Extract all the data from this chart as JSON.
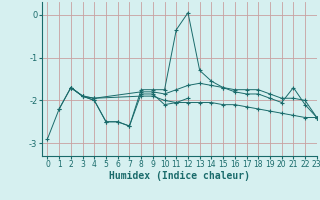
{
  "xlabel": "Humidex (Indice chaleur)",
  "bg_color": "#d6f0f0",
  "grid_color": "#c8a0a0",
  "line_color": "#1a6b6b",
  "xlim": [
    -0.5,
    23
  ],
  "ylim": [
    -3.3,
    0.3
  ],
  "yticks": [
    0,
    -1,
    -2,
    -3
  ],
  "xticks": [
    0,
    1,
    2,
    3,
    4,
    5,
    6,
    7,
    8,
    9,
    10,
    11,
    12,
    13,
    14,
    15,
    16,
    17,
    18,
    19,
    20,
    21,
    22,
    23
  ],
  "series": {
    "line1": [
      null,
      -2.2,
      -1.7,
      -1.9,
      -2.0,
      -2.5,
      -2.5,
      -2.6,
      -1.75,
      -1.75,
      -1.75,
      -0.35,
      0.05,
      -1.3,
      -1.55,
      -1.7,
      -1.8,
      -1.85,
      -1.85,
      -1.95,
      -2.05,
      -1.7,
      -2.1,
      -2.4
    ],
    "line2": [
      -2.9,
      -2.2,
      -1.7,
      -1.9,
      -2.0,
      -2.5,
      -2.5,
      -2.6,
      -1.85,
      -1.85,
      -2.1,
      -2.05,
      -1.95,
      null,
      null,
      null,
      null,
      null,
      null,
      null,
      null,
      null,
      null,
      null
    ],
    "line3": [
      null,
      null,
      -1.7,
      -1.9,
      -1.95,
      null,
      null,
      null,
      -1.8,
      -1.8,
      -1.85,
      -1.75,
      -1.65,
      -1.6,
      -1.65,
      -1.7,
      -1.75,
      -1.75,
      -1.75,
      -1.85,
      -1.95,
      -1.95,
      -2.0,
      -2.4
    ],
    "line4": [
      null,
      null,
      -1.7,
      -1.9,
      -1.95,
      null,
      null,
      null,
      -1.9,
      -1.9,
      -2.0,
      -2.05,
      -2.05,
      -2.05,
      -2.05,
      -2.1,
      -2.1,
      -2.15,
      -2.2,
      -2.25,
      -2.3,
      -2.35,
      -2.4,
      -2.4
    ]
  }
}
